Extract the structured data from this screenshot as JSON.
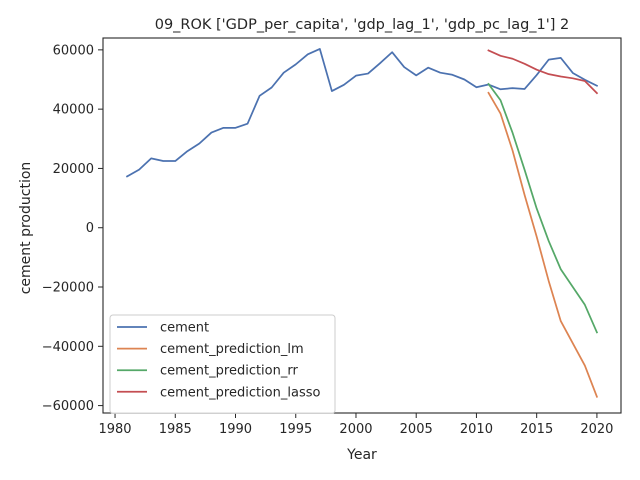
{
  "chart_data": {
    "type": "line",
    "title": "09_ROK ['GDP_per_capita', 'gdp_lag_1', 'gdp_pc_lag_1'] 2",
    "xlabel": "Year",
    "ylabel": "cement production",
    "xlim": [
      1979,
      2022
    ],
    "ylim": [
      -62500,
      64000
    ],
    "xticks": [
      1980,
      1985,
      1990,
      1995,
      2000,
      2005,
      2010,
      2015,
      2020
    ],
    "yticks": [
      -60000,
      -40000,
      -20000,
      0,
      20000,
      40000,
      60000
    ],
    "grid": false,
    "legend_position": "lower-left",
    "series": [
      {
        "name": "cement",
        "color": "#4c72b0",
        "x": [
          1981,
          1982,
          1983,
          1984,
          1985,
          1986,
          1987,
          1988,
          1989,
          1990,
          1991,
          1992,
          1993,
          1994,
          1995,
          1996,
          1997,
          1998,
          1999,
          2000,
          2001,
          2002,
          2003,
          2004,
          2005,
          2006,
          2007,
          2008,
          2009,
          2010,
          2011,
          2012,
          2013,
          2014,
          2015,
          2016,
          2017,
          2018,
          2019,
          2020
        ],
        "y": [
          17300,
          19600,
          23400,
          22500,
          22500,
          25800,
          28400,
          32100,
          33700,
          33700,
          35100,
          44500,
          47300,
          52300,
          55100,
          58500,
          60300,
          46100,
          48200,
          51300,
          52000,
          55500,
          59200,
          54200,
          51400,
          54000,
          52300,
          51600,
          50000,
          47400,
          48300,
          46700,
          47100,
          46800,
          51500,
          56700,
          57300,
          52200,
          49900,
          47900
        ]
      },
      {
        "name": "cement_prediction_lm",
        "color": "#dd8452",
        "x": [
          2011,
          2012,
          2013,
          2014,
          2015,
          2016,
          2017,
          2018,
          2019,
          2020
        ],
        "y": [
          45500,
          38500,
          26000,
          11000,
          -3000,
          -18000,
          -31500,
          -39000,
          -46500,
          -57000
        ]
      },
      {
        "name": "cement_prediction_rr",
        "color": "#55a868",
        "x": [
          2011,
          2012,
          2013,
          2014,
          2015,
          2016,
          2017,
          2018,
          2019,
          2020
        ],
        "y": [
          48500,
          43000,
          32000,
          19500,
          6500,
          -4500,
          -14000,
          -20000,
          -26000,
          -35300
        ]
      },
      {
        "name": "cement_prediction_lasso",
        "color": "#c44e52",
        "x": [
          2011,
          2012,
          2013,
          2014,
          2015,
          2016,
          2017,
          2018,
          2019,
          2020
        ],
        "y": [
          59800,
          58000,
          57000,
          55300,
          53300,
          51800,
          51000,
          50400,
          49500,
          45400
        ]
      }
    ]
  }
}
